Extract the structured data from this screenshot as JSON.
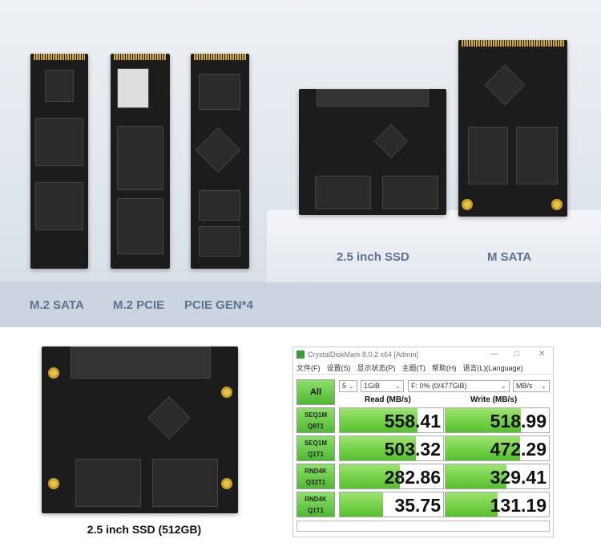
{
  "top_labels": {
    "m2_sata": "M.2 SATA",
    "m2_pcie": "M.2 PCIE",
    "pcie_gen4": "PCIE GEN*4",
    "ssd25": "2.5 inch SSD",
    "msata": "M SATA"
  },
  "caption": "2.5 inch SSD (512GB)",
  "cdm": {
    "title": "CrystalDiskMark 8.0.2 x64 [Admin]",
    "controls": {
      "minimize": "—",
      "maximize": "□",
      "close": "✕"
    },
    "menu": [
      "文件(F)",
      "设置(S)",
      "显示状态(P)",
      "主题(T)",
      "帮助(H)",
      "语言(L)(Language)"
    ],
    "all_label": "All",
    "count": "5",
    "size": "1GiB",
    "drive": "F: 0% (0/477GiB)",
    "unit": "MB/s",
    "read_header": "Read (MB/s)",
    "write_header": "Write (MB/s)",
    "rows": [
      {
        "l1": "SEQ1M",
        "l2": "Q8T1",
        "read": "558.41",
        "write": "518.99",
        "read_fill": 0.75,
        "write_fill": 0.73
      },
      {
        "l1": "SEQ1M",
        "l2": "Q1T1",
        "read": "503.32",
        "write": "472.29",
        "read_fill": 0.74,
        "write_fill": 0.72
      },
      {
        "l1": "RND4K",
        "l2": "Q32T1",
        "read": "282.86",
        "write": "329.41",
        "read_fill": 0.58,
        "write_fill": 0.59
      },
      {
        "l1": "RND4K",
        "l2": "Q1T1",
        "read": "35.75",
        "write": "131.19",
        "read_fill": 0.42,
        "write_fill": 0.5
      }
    ],
    "accent": "#55c02c"
  }
}
